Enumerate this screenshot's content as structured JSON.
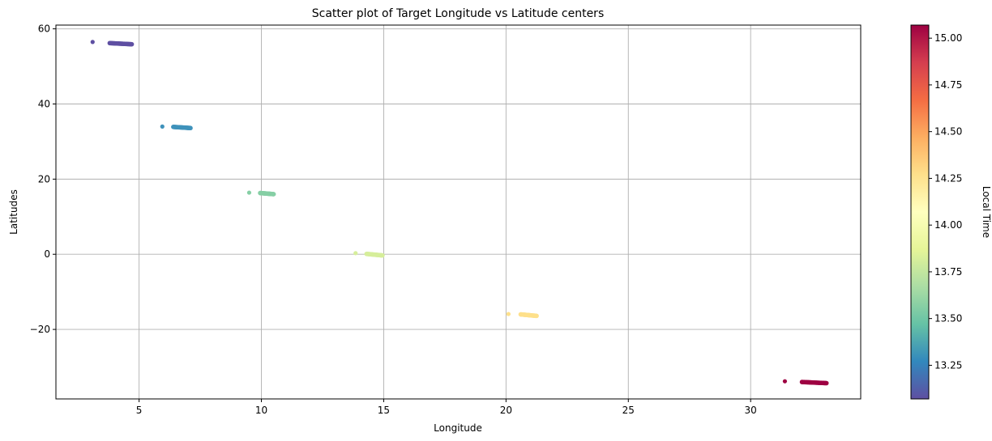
{
  "chart_data": {
    "type": "scatter",
    "title": "Scatter plot of Target Longitude vs Latitude centers",
    "xlabel": "Longitude",
    "ylabel": "Latitudes",
    "xlim": [
      1.6,
      34.5
    ],
    "ylim": [
      -38.5,
      61
    ],
    "xticks": [
      5,
      10,
      15,
      20,
      25,
      30
    ],
    "xtick_labels": [
      "5",
      "10",
      "15",
      "20",
      "25",
      "30"
    ],
    "yticks": [
      -20,
      0,
      20,
      40,
      60
    ],
    "ytick_labels": [
      "−20",
      "0",
      "20",
      "40",
      "60"
    ],
    "grid": true,
    "colorbar": {
      "label": "Local Time",
      "colormap": "Spectral_r",
      "min": 13.07,
      "max": 15.07,
      "ticks": [
        13.25,
        13.5,
        13.75,
        14.0,
        14.25,
        14.5,
        14.75,
        15.0
      ],
      "tick_labels": [
        "13.25",
        "13.50",
        "13.75",
        "14.00",
        "14.25",
        "14.50",
        "14.75",
        "15.00"
      ]
    },
    "clusters": [
      {
        "lone_point": [
          3.1,
          56.5
        ],
        "band_start": [
          3.8,
          56.2
        ],
        "band_end": [
          4.7,
          55.9
        ],
        "local_time": 13.07,
        "color": "#5e4fa2"
      },
      {
        "lone_point": [
          5.95,
          34.0
        ],
        "band_start": [
          6.4,
          33.9
        ],
        "band_end": [
          7.1,
          33.6
        ],
        "local_time": 13.3,
        "color": "#3f92bb"
      },
      {
        "lone_point": [
          9.5,
          16.4
        ],
        "band_start": [
          9.95,
          16.3
        ],
        "band_end": [
          10.5,
          16.0
        ],
        "local_time": 13.62,
        "color": "#86cfa5"
      },
      {
        "lone_point": [
          13.85,
          0.3
        ],
        "band_start": [
          14.3,
          0.1
        ],
        "band_end": [
          14.95,
          -0.3
        ],
        "local_time": 13.85,
        "color": "#d6ee9b"
      },
      {
        "lone_point": [
          20.1,
          -15.9
        ],
        "band_start": [
          20.6,
          -16.0
        ],
        "band_end": [
          21.25,
          -16.4
        ],
        "local_time": 14.2,
        "color": "#fee08b"
      },
      {
        "lone_point": [
          31.4,
          -33.8
        ],
        "band_start": [
          32.1,
          -34.0
        ],
        "band_end": [
          33.1,
          -34.3
        ],
        "local_time": 15.07,
        "color": "#9e0142"
      }
    ]
  }
}
